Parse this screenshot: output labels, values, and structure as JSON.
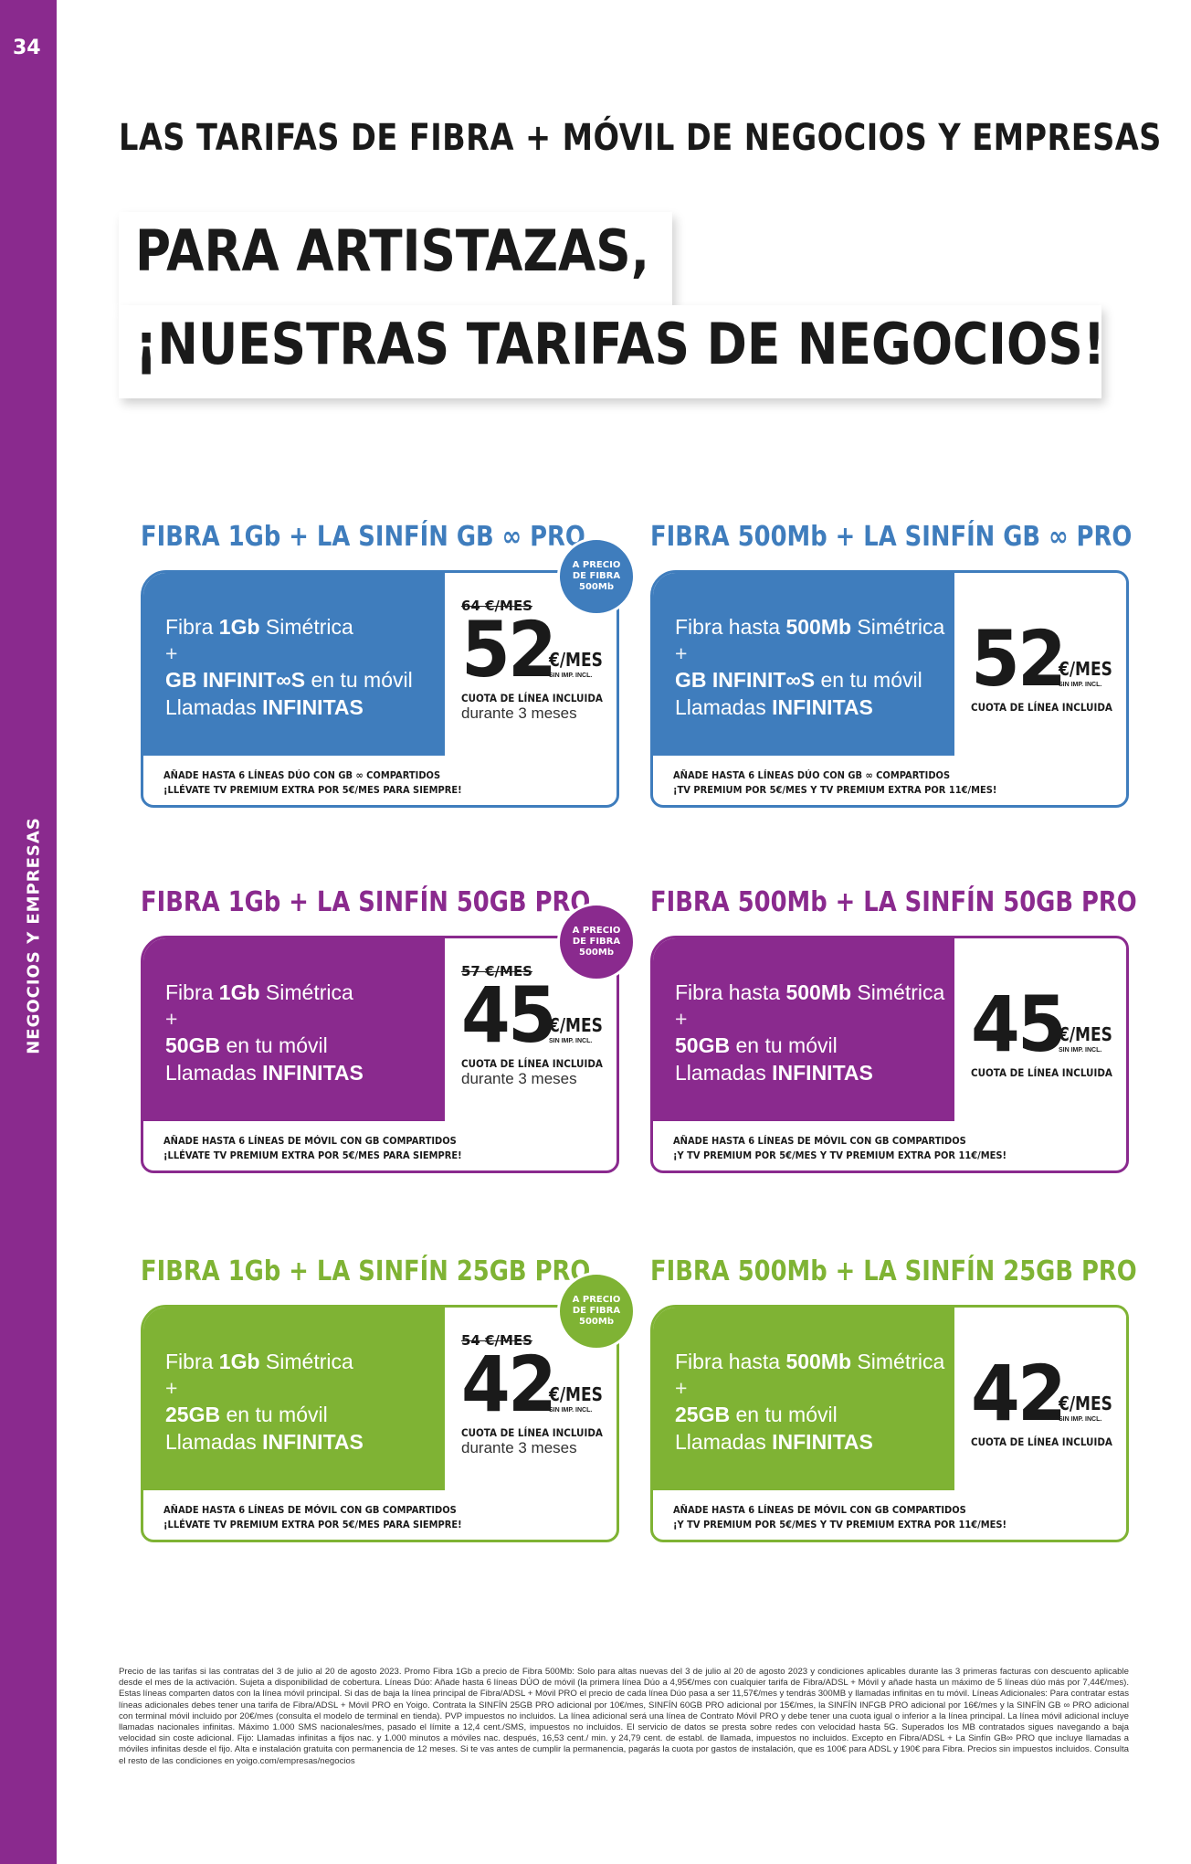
{
  "page": {
    "number": "34",
    "side_label": "NEGOCIOS Y EMPRESAS",
    "section_title": "LAS TARIFAS DE FIBRA + MÓVIL DE NEGOCIOS Y EMPRESAS",
    "headline_line1": "PARA ARTISTAZAS,",
    "headline_line2": "¡NUESTRAS TARIFAS DE NEGOCIOS!"
  },
  "colors": {
    "blue": "#3f7dbd",
    "purple": "#8a2a8e",
    "green": "#7fb334"
  },
  "cards": [
    {
      "title": "FIBRA 1Gb + LA SINFÍN GB ∞ PRO",
      "line1_pre": "Fibra ",
      "line1_bold": "1Gb",
      "line1_post": " Simétrica",
      "plus": "+",
      "line2_bold": "GB INFINIT∞S",
      "line2_post": " en tu móvil",
      "line3_pre": "Llamadas ",
      "line3_bold": "INFINITAS",
      "old_price": "64 €/MES",
      "price": "52",
      "unit": "€/MES",
      "unit_small": "SIN IMP. INCL.",
      "cuota": "CUOTA DE LÍNEA INCLUIDA",
      "durante": "durante 3 meses",
      "footer1": "AÑADE HASTA 6 LÍNEAS DÚO CON GB ∞ COMPARTIDOS",
      "footer2": "¡LLÉVATE TV PREMIUM EXTRA POR 5€/MES PARA SIEMPRE!",
      "badge1": "A PRECIO",
      "badge2": "DE FIBRA",
      "badge3": "500Mb"
    },
    {
      "title": "FIBRA 500Mb + LA SINFÍN GB ∞ PRO",
      "line1_pre": "Fibra hasta ",
      "line1_bold": "500Mb",
      "line1_post": " Simétrica",
      "plus": "+",
      "line2_bold": "GB INFINIT∞S",
      "line2_post": " en tu móvil",
      "line3_pre": "Llamadas ",
      "line3_bold": "INFINITAS",
      "price": "52",
      "unit": "€/MES",
      "unit_small": "SIN IMP. INCL.",
      "cuota": "CUOTA DE LÍNEA INCLUIDA",
      "footer1": "AÑADE HASTA 6 LÍNEAS DÚO CON GB ∞ COMPARTIDOS",
      "footer2": "¡TV PREMIUM POR 5€/MES Y TV PREMIUM EXTRA POR 11€/MES!"
    },
    {
      "title": "FIBRA 1Gb + LA SINFÍN 50GB PRO",
      "line1_pre": "Fibra ",
      "line1_bold": "1Gb",
      "line1_post": " Simétrica",
      "plus": "+",
      "line2_bold": "50GB",
      "line2_post": " en tu móvil",
      "line3_pre": "Llamadas ",
      "line3_bold": "INFINITAS",
      "old_price": "57 €/MES",
      "price": "45",
      "unit": "€/MES",
      "unit_small": "SIN IMP. INCL.",
      "cuota": "CUOTA DE LÍNEA INCLUIDA",
      "durante": "durante 3 meses",
      "footer1": "AÑADE HASTA 6 LÍNEAS DE MÓVIL CON GB COMPARTIDOS",
      "footer2": "¡LLÉVATE TV PREMIUM EXTRA POR 5€/MES PARA SIEMPRE!",
      "badge1": "A PRECIO",
      "badge2": "DE FIBRA",
      "badge3": "500Mb"
    },
    {
      "title": "FIBRA 500Mb + LA SINFÍN 50GB PRO",
      "line1_pre": "Fibra hasta ",
      "line1_bold": "500Mb",
      "line1_post": " Simétrica",
      "plus": "+",
      "line2_bold": "50GB",
      "line2_post": " en tu móvil",
      "line3_pre": "Llamadas ",
      "line3_bold": "INFINITAS",
      "price": "45",
      "unit": "€/MES",
      "unit_small": "SIN IMP. INCL.",
      "cuota": "CUOTA DE LÍNEA INCLUIDA",
      "footer1": "AÑADE HASTA 6 LÍNEAS DE MÓVIL CON GB COMPARTIDOS",
      "footer2": "¡Y TV PREMIUM POR 5€/MES Y TV PREMIUM EXTRA POR 11€/MES!"
    },
    {
      "title": "FIBRA 1Gb + LA SINFÍN 25GB PRO",
      "line1_pre": "Fibra ",
      "line1_bold": "1Gb",
      "line1_post": " Simétrica",
      "plus": "+",
      "line2_bold": "25GB",
      "line2_post": " en tu móvil",
      "line3_pre": "Llamadas ",
      "line3_bold": "INFINITAS",
      "old_price": "54 €/MES",
      "price": "42",
      "unit": "€/MES",
      "unit_small": "SIN IMP. INCL.",
      "cuota": "CUOTA DE LÍNEA INCLUIDA",
      "durante": "durante 3 meses",
      "footer1": "AÑADE HASTA 6 LÍNEAS DE MÓVIL CON GB COMPARTIDOS",
      "footer2": "¡LLÉVATE TV PREMIUM EXTRA POR 5€/MES PARA SIEMPRE!",
      "badge1": "A PRECIO",
      "badge2": "DE FIBRA",
      "badge3": "500Mb"
    },
    {
      "title": "FIBRA 500Mb + LA SINFÍN 25GB PRO",
      "line1_pre": "Fibra hasta ",
      "line1_bold": "500Mb",
      "line1_post": " Simétrica",
      "plus": "+",
      "line2_bold": "25GB",
      "line2_post": " en tu móvil",
      "line3_pre": "Llamadas ",
      "line3_bold": "INFINITAS",
      "price": "42",
      "unit": "€/MES",
      "unit_small": "SIN IMP. INCL.",
      "cuota": "CUOTA DE LÍNEA INCLUIDA",
      "footer1": "AÑADE HASTA 6 LÍNEAS DE MÓVIL CON GB COMPARTIDOS",
      "footer2": "¡Y TV PREMIUM POR 5€/MES Y TV PREMIUM EXTRA POR 11€/MES!"
    }
  ],
  "legal": "Precio de las tarifas si las contratas del 3 de julio al 20 de agosto 2023. Promo Fibra 1Gb a precio de Fibra 500Mb: Solo para altas nuevas del 3 de julio al 20 de agosto 2023 y condiciones aplicables durante las 3 primeras facturas con descuento aplicable desde el mes de la activación. Sujeta a disponibilidad de cobertura. Líneas Dúo: Añade hasta 6 líneas DÚO de móvil (la primera línea Dúo a 4,95€/mes con cualquier tarifa de Fibra/ADSL + Móvil y añade hasta un máximo de 5 líneas dúo más por 7,44€/mes). Estas líneas comparten datos con la línea móvil principal. Si das de baja la línea principal de Fibra/ADSL + Móvil PRO el precio de cada línea Dúo pasa a ser 11,57€/mes y tendrás 300MB y llamadas infinitas en tu móvil. Líneas Adicionales: Para contratar estas líneas adicionales debes tener una tarifa de Fibra/ADSL + Móvil PRO en Yoigo. Contrata la SINFÍN 25GB PRO adicional por 10€/mes, SINFÍN 60GB PRO adicional por 15€/mes, la SINFÍN INFGB PRO adicional por 16€/mes y la SINFÍN GB ∞ PRO adicional con terminal móvil incluido por 20€/mes (consulta el modelo de terminal en tienda). PVP impuestos no incluidos. La línea adicional será una línea de Contrato Móvil PRO y debe tener una cuota igual o inferior a la línea principal. La línea móvil adicional incluye llamadas nacionales infinitas. Máximo 1.000 SMS nacionales/mes, pasado el límite a 12,4 cent./SMS, impuestos no incluidos. El servicio de datos se presta sobre redes con velocidad hasta 5G. Superados los MB contratados sigues navegando a baja velocidad sin coste adicional. Fijo: Llamadas infinitas a fijos nac. y 1.000 minutos a móviles nac. después, 16,53 cent./ min. y 24,79 cent. de establ. de llamada, impuestos no incluidos. Excepto en Fibra/ADSL + La Sinfín GB∞ PRO que incluye llamadas a móviles infinitas desde el fijo. Alta e instalación gratuita con permanencia de 12 meses. Si te vas antes de cumplir la permanencia, pagarás la cuota por gastos de instalación, que es 100€ para ADSL y 190€ para Fibra. Precios sin impuestos incluidos. Consulta el resto de las condiciones en yoigo.com/empresas/negocios"
}
